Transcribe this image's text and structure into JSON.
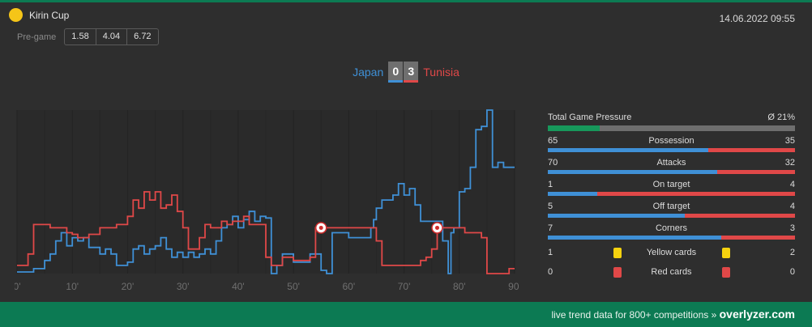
{
  "competition": {
    "name": "Kirin Cup",
    "icon": "trophy-dot-icon",
    "color": "#f5c518"
  },
  "datetime": "14.06.2022 09:55",
  "pregame": {
    "label": "Pre-game",
    "odds": [
      "1.58",
      "4.04",
      "6.72"
    ]
  },
  "match": {
    "home_team": "Japan",
    "away_team": "Tunisia",
    "home_score": "0",
    "away_score": "3",
    "home_color": "#3f90d6",
    "away_color": "#e04848"
  },
  "chart_data": {
    "type": "line",
    "xlabel": "",
    "ylabel": "",
    "x_ticks": [
      "0'",
      "10'",
      "20'",
      "30'",
      "40'",
      "50'",
      "60'",
      "70'",
      "80'",
      "90'"
    ],
    "xlim": [
      0,
      90
    ],
    "ylim": [
      0,
      100
    ],
    "grid": true,
    "series": [
      {
        "team": "home",
        "color": "#3f90d6",
        "points": [
          [
            0,
            1
          ],
          [
            3,
            1
          ],
          [
            3,
            3
          ],
          [
            5,
            3
          ],
          [
            5,
            8
          ],
          [
            6,
            8
          ],
          [
            6,
            12
          ],
          [
            7,
            12
          ],
          [
            7,
            20
          ],
          [
            8,
            20
          ],
          [
            8,
            25
          ],
          [
            9,
            25
          ],
          [
            9,
            17
          ],
          [
            10,
            17
          ],
          [
            10,
            22
          ],
          [
            11,
            22
          ],
          [
            11,
            20
          ],
          [
            12,
            20
          ],
          [
            12,
            22
          ],
          [
            13,
            22
          ],
          [
            13,
            16
          ],
          [
            15,
            16
          ],
          [
            15,
            12
          ],
          [
            16,
            12
          ],
          [
            16,
            15
          ],
          [
            17,
            15
          ],
          [
            17,
            12
          ],
          [
            18,
            12
          ],
          [
            18,
            5
          ],
          [
            20,
            5
          ],
          [
            20,
            7
          ],
          [
            21,
            7
          ],
          [
            21,
            15
          ],
          [
            22,
            15
          ],
          [
            22,
            17
          ],
          [
            23,
            17
          ],
          [
            23,
            12
          ],
          [
            24,
            12
          ],
          [
            24,
            15
          ],
          [
            25,
            15
          ],
          [
            25,
            17
          ],
          [
            26,
            17
          ],
          [
            26,
            22
          ],
          [
            27,
            22
          ],
          [
            27,
            15
          ],
          [
            28,
            15
          ],
          [
            28,
            10
          ],
          [
            29,
            10
          ],
          [
            29,
            13
          ],
          [
            30,
            13
          ],
          [
            30,
            10
          ],
          [
            31,
            10
          ],
          [
            31,
            13
          ],
          [
            32,
            13
          ],
          [
            32,
            10
          ],
          [
            33,
            10
          ],
          [
            33,
            12
          ],
          [
            34,
            12
          ],
          [
            34,
            15
          ],
          [
            35,
            15
          ],
          [
            35,
            12
          ],
          [
            36,
            12
          ],
          [
            36,
            20
          ],
          [
            37,
            20
          ],
          [
            37,
            28
          ],
          [
            38,
            28
          ],
          [
            38,
            30
          ],
          [
            39,
            30
          ],
          [
            39,
            35
          ],
          [
            40,
            35
          ],
          [
            40,
            28
          ],
          [
            41,
            28
          ],
          [
            41,
            33
          ],
          [
            42,
            33
          ],
          [
            42,
            38
          ],
          [
            43,
            38
          ],
          [
            43,
            32
          ],
          [
            44,
            32
          ],
          [
            44,
            35
          ],
          [
            45,
            35
          ],
          [
            45,
            34
          ],
          [
            46,
            34
          ],
          [
            46,
            0
          ],
          [
            47,
            0
          ],
          [
            47,
            5
          ],
          [
            48,
            5
          ],
          [
            48,
            12
          ],
          [
            50,
            12
          ],
          [
            50,
            7
          ],
          [
            53,
            7
          ],
          [
            53,
            12
          ],
          [
            55,
            12
          ],
          [
            55,
            2
          ],
          [
            56,
            2
          ],
          [
            56,
            0
          ],
          [
            57,
            0
          ],
          [
            57,
            25
          ],
          [
            60,
            25
          ],
          [
            60,
            22
          ],
          [
            63,
            22
          ],
          [
            63,
            22
          ],
          [
            64,
            22
          ],
          [
            64,
            28
          ],
          [
            64.5,
            28
          ],
          [
            64.5,
            33
          ],
          [
            65,
            33
          ],
          [
            65,
            40
          ],
          [
            66,
            40
          ],
          [
            66,
            45
          ],
          [
            68,
            45
          ],
          [
            68,
            48
          ],
          [
            69,
            48
          ],
          [
            69,
            55
          ],
          [
            70,
            55
          ],
          [
            70,
            48
          ],
          [
            71,
            48
          ],
          [
            71,
            52
          ],
          [
            72,
            52
          ],
          [
            72,
            42
          ],
          [
            73,
            42
          ],
          [
            73,
            32
          ],
          [
            77,
            32
          ],
          [
            77,
            20
          ],
          [
            78,
            20
          ],
          [
            78,
            0
          ],
          [
            78.5,
            0
          ],
          [
            78.5,
            25
          ],
          [
            79,
            25
          ],
          [
            79,
            28
          ],
          [
            80,
            28
          ],
          [
            80,
            50
          ],
          [
            81,
            50
          ],
          [
            81,
            52
          ],
          [
            82,
            52
          ],
          [
            82,
            65
          ],
          [
            83,
            65
          ],
          [
            83,
            88
          ],
          [
            84,
            88
          ],
          [
            84,
            90
          ],
          [
            85,
            90
          ],
          [
            85,
            100
          ],
          [
            86,
            100
          ],
          [
            86,
            65
          ],
          [
            87,
            65
          ],
          [
            87,
            68
          ],
          [
            88,
            68
          ],
          [
            88,
            65
          ],
          [
            90,
            65
          ]
        ]
      },
      {
        "team": "away",
        "color": "#e04848",
        "points": [
          [
            0,
            5
          ],
          [
            2,
            5
          ],
          [
            2,
            12
          ],
          [
            3,
            12
          ],
          [
            3,
            30
          ],
          [
            4,
            30
          ],
          [
            4,
            30
          ],
          [
            6,
            30
          ],
          [
            6,
            28
          ],
          [
            9,
            28
          ],
          [
            9,
            25
          ],
          [
            10,
            25
          ],
          [
            10,
            24
          ],
          [
            11,
            24
          ],
          [
            11,
            22
          ],
          [
            13,
            22
          ],
          [
            13,
            24
          ],
          [
            15,
            24
          ],
          [
            15,
            28
          ],
          [
            18,
            28
          ],
          [
            18,
            30
          ],
          [
            20,
            30
          ],
          [
            20,
            35
          ],
          [
            21,
            35
          ],
          [
            21,
            45
          ],
          [
            22,
            45
          ],
          [
            22,
            40
          ],
          [
            23,
            40
          ],
          [
            23,
            50
          ],
          [
            24,
            50
          ],
          [
            24,
            45
          ],
          [
            25,
            45
          ],
          [
            25,
            50
          ],
          [
            26,
            50
          ],
          [
            26,
            40
          ],
          [
            27,
            40
          ],
          [
            27,
            42
          ],
          [
            28,
            42
          ],
          [
            28,
            48
          ],
          [
            29,
            48
          ],
          [
            29,
            38
          ],
          [
            30,
            38
          ],
          [
            30,
            28
          ],
          [
            31,
            28
          ],
          [
            31,
            15
          ],
          [
            33,
            15
          ],
          [
            33,
            22
          ],
          [
            34,
            22
          ],
          [
            34,
            30
          ],
          [
            35,
            30
          ],
          [
            35,
            28
          ],
          [
            37,
            28
          ],
          [
            37,
            32
          ],
          [
            38,
            32
          ],
          [
            38,
            30
          ],
          [
            39,
            30
          ],
          [
            39,
            32
          ],
          [
            41,
            32
          ],
          [
            41,
            35
          ],
          [
            42,
            35
          ],
          [
            42,
            30
          ],
          [
            45,
            30
          ],
          [
            45,
            10
          ],
          [
            46,
            10
          ],
          [
            46,
            5
          ],
          [
            48,
            5
          ],
          [
            48,
            10
          ],
          [
            50,
            10
          ],
          [
            50,
            8
          ],
          [
            53,
            8
          ],
          [
            53,
            10
          ],
          [
            54,
            10
          ],
          [
            54,
            28
          ],
          [
            58,
            28
          ],
          [
            58,
            28
          ],
          [
            65,
            28
          ],
          [
            65,
            20
          ],
          [
            66,
            20
          ],
          [
            66,
            5
          ],
          [
            73,
            5
          ],
          [
            73,
            8
          ],
          [
            74,
            8
          ],
          [
            74,
            10
          ],
          [
            75,
            10
          ],
          [
            75,
            15
          ],
          [
            76,
            15
          ],
          [
            76,
            28
          ],
          [
            81,
            28
          ],
          [
            81,
            25
          ],
          [
            84,
            25
          ],
          [
            84,
            22
          ],
          [
            85,
            22
          ],
          [
            85,
            0
          ],
          [
            89,
            0
          ],
          [
            89,
            3
          ],
          [
            90,
            3
          ]
        ]
      }
    ],
    "goals": [
      {
        "minute": 55,
        "team": "away",
        "value": 28,
        "icon": "soccer-ball-icon"
      },
      {
        "minute": 76,
        "team": "away",
        "value": 28,
        "icon": "soccer-ball-icon"
      }
    ]
  },
  "stats": {
    "pressure": {
      "label": "Total Game Pressure",
      "value": "Ø 21%",
      "fraction": 0.21,
      "color": "#17985b"
    },
    "rows": [
      {
        "label": "Possession",
        "home": "65",
        "away": "35"
      },
      {
        "label": "Attacks",
        "home": "70",
        "away": "32"
      },
      {
        "label": "On target",
        "home": "1",
        "away": "4"
      },
      {
        "label": "Off target",
        "home": "5",
        "away": "4"
      },
      {
        "label": "Corners",
        "home": "7",
        "away": "3"
      }
    ],
    "cards": [
      {
        "label": "Yellow cards",
        "home": "1",
        "away": "2",
        "color": "#f5d20f"
      },
      {
        "label": "Red cards",
        "home": "0",
        "away": "0",
        "color": "#e04848"
      }
    ]
  },
  "footer": {
    "text": "live trend data for 800+ competitions »",
    "brand": "overlyzer.com"
  }
}
